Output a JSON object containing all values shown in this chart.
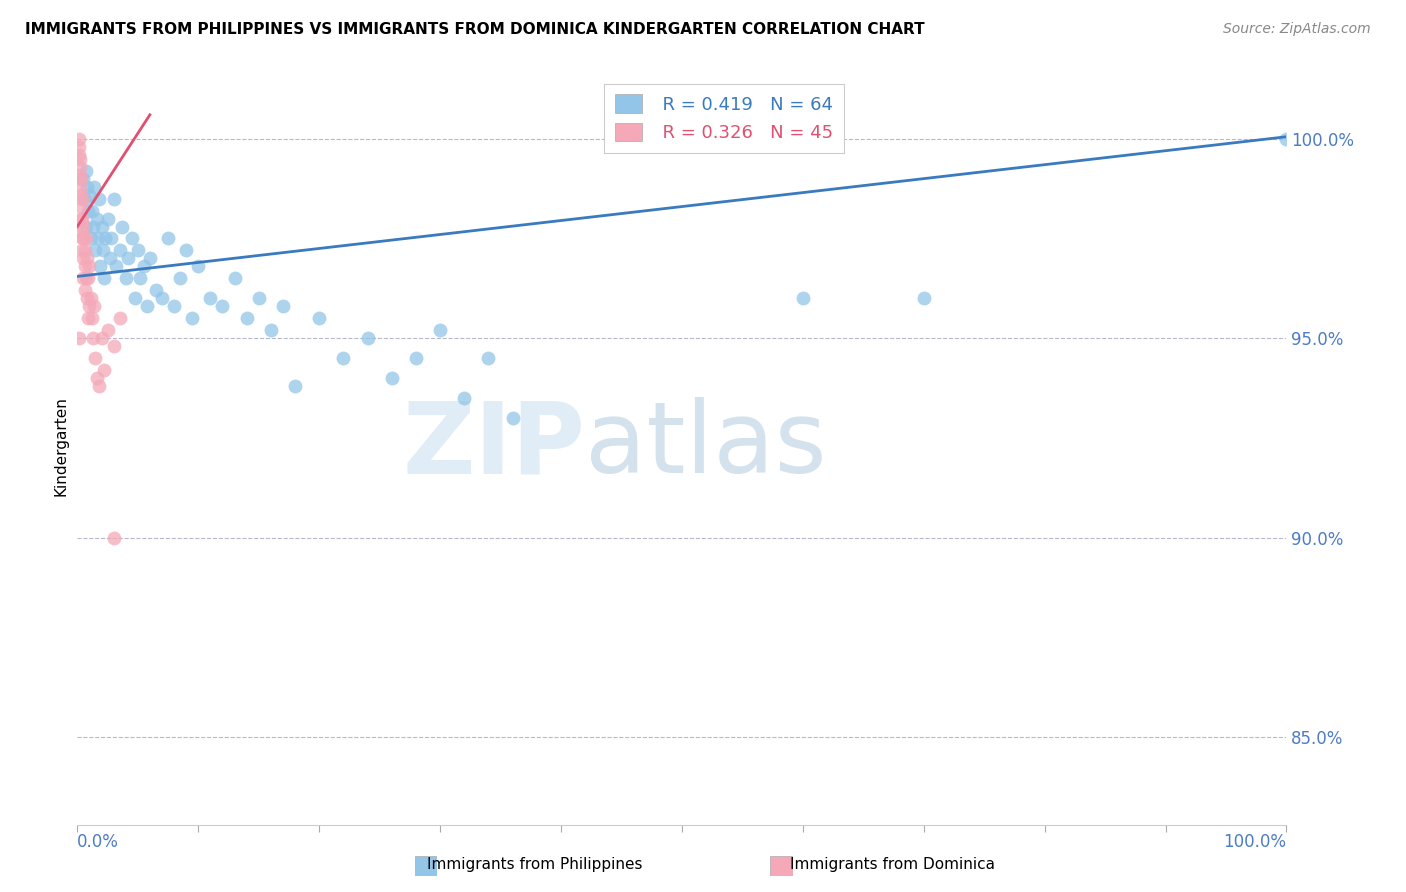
{
  "title": "IMMIGRANTS FROM PHILIPPINES VS IMMIGRANTS FROM DOMINICA KINDERGARTEN CORRELATION CHART",
  "source": "Source: ZipAtlas.com",
  "ylabel": "Kindergarten",
  "yticks": [
    0.85,
    0.9,
    0.95,
    1.0
  ],
  "ytick_labels": [
    "85.0%",
    "90.0%",
    "95.0%",
    "100.0%"
  ],
  "xlim": [
    0.0,
    1.0
  ],
  "ylim": [
    0.828,
    1.018
  ],
  "xtick_left_label": "0.0%",
  "xtick_right_label": "100.0%",
  "legend_r_blue": "R = 0.419",
  "legend_n_blue": "N = 64",
  "legend_r_pink": "R = 0.326",
  "legend_n_pink": "N = 45",
  "scatter_blue_x": [
    0.005,
    0.006,
    0.007,
    0.007,
    0.008,
    0.009,
    0.01,
    0.011,
    0.012,
    0.013,
    0.014,
    0.015,
    0.016,
    0.017,
    0.018,
    0.019,
    0.02,
    0.021,
    0.022,
    0.023,
    0.025,
    0.027,
    0.028,
    0.03,
    0.032,
    0.035,
    0.037,
    0.04,
    0.042,
    0.045,
    0.048,
    0.05,
    0.052,
    0.055,
    0.058,
    0.06,
    0.065,
    0.07,
    0.075,
    0.08,
    0.085,
    0.09,
    0.095,
    0.1,
    0.11,
    0.12,
    0.13,
    0.14,
    0.15,
    0.16,
    0.17,
    0.18,
    0.2,
    0.22,
    0.24,
    0.26,
    0.28,
    0.3,
    0.32,
    0.34,
    0.36,
    0.6,
    0.7,
    1.0
  ],
  "scatter_blue_y": [
    0.99,
    0.985,
    0.992,
    0.978,
    0.988,
    0.982,
    0.986,
    0.975,
    0.982,
    0.978,
    0.988,
    0.972,
    0.98,
    0.975,
    0.985,
    0.968,
    0.978,
    0.972,
    0.965,
    0.975,
    0.98,
    0.97,
    0.975,
    0.985,
    0.968,
    0.972,
    0.978,
    0.965,
    0.97,
    0.975,
    0.96,
    0.972,
    0.965,
    0.968,
    0.958,
    0.97,
    0.962,
    0.96,
    0.975,
    0.958,
    0.965,
    0.972,
    0.955,
    0.968,
    0.96,
    0.958,
    0.965,
    0.955,
    0.96,
    0.952,
    0.958,
    0.938,
    0.955,
    0.945,
    0.95,
    0.94,
    0.945,
    0.952,
    0.935,
    0.945,
    0.93,
    0.96,
    0.96,
    1.0
  ],
  "scatter_pink_x": [
    0.001,
    0.001,
    0.001,
    0.002,
    0.002,
    0.002,
    0.002,
    0.003,
    0.003,
    0.003,
    0.003,
    0.003,
    0.004,
    0.004,
    0.004,
    0.004,
    0.005,
    0.005,
    0.005,
    0.005,
    0.006,
    0.006,
    0.006,
    0.007,
    0.007,
    0.008,
    0.008,
    0.009,
    0.009,
    0.01,
    0.01,
    0.011,
    0.012,
    0.013,
    0.014,
    0.015,
    0.016,
    0.018,
    0.02,
    0.022,
    0.025,
    0.03,
    0.035,
    0.001,
    0.03
  ],
  "scatter_pink_y": [
    1.0,
    0.998,
    0.996,
    0.995,
    0.993,
    0.991,
    0.988,
    0.99,
    0.986,
    0.983,
    0.98,
    0.977,
    0.985,
    0.98,
    0.975,
    0.972,
    0.978,
    0.975,
    0.97,
    0.965,
    0.972,
    0.968,
    0.962,
    0.975,
    0.965,
    0.97,
    0.96,
    0.965,
    0.955,
    0.968,
    0.958,
    0.96,
    0.955,
    0.95,
    0.958,
    0.945,
    0.94,
    0.938,
    0.95,
    0.942,
    0.952,
    0.948,
    0.955,
    0.95,
    0.9
  ],
  "blue_trend_x": [
    0.0,
    1.0
  ],
  "blue_trend_y": [
    0.9655,
    1.0005
  ],
  "pink_trend_x": [
    0.0,
    0.06
  ],
  "pink_trend_y": [
    0.978,
    1.006
  ],
  "blue_color": "#92c5e8",
  "pink_color": "#f4a8b8",
  "trend_blue_color": "#3a7abf",
  "trend_pink_color": "#e05070",
  "watermark_zip": "ZIP",
  "watermark_atlas": "atlas",
  "grid_color": "#b8b8cc",
  "tick_label_color": "#4d7cc7",
  "source_color": "#888888"
}
